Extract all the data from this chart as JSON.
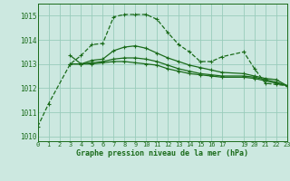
{
  "title": "Graphe pression niveau de la mer (hPa)",
  "bg_color": "#cce8e0",
  "grid_color": "#99ccbb",
  "line_color": "#1a6b1a",
  "xlim": [
    0,
    23
  ],
  "ylim": [
    1009.8,
    1015.5
  ],
  "yticks": [
    1010,
    1011,
    1012,
    1013,
    1014,
    1015
  ],
  "xtick_positions": [
    0,
    1,
    2,
    3,
    4,
    5,
    6,
    7,
    8,
    9,
    10,
    11,
    12,
    13,
    14,
    15,
    16,
    17,
    19,
    20,
    21,
    22,
    23
  ],
  "xtick_labels": [
    "0",
    "1",
    "2",
    "3",
    "4",
    "5",
    "6",
    "7",
    "8",
    "9",
    "10",
    "11",
    "12",
    "13",
    "14",
    "15",
    "16",
    "17",
    "19",
    "20",
    "21",
    "22",
    "23"
  ],
  "series": [
    {
      "x": [
        0,
        1,
        3,
        4,
        5,
        6,
        7,
        8,
        9,
        10,
        11,
        12,
        13,
        14,
        15,
        16,
        17,
        19,
        20,
        21,
        22,
        23
      ],
      "y": [
        1010.4,
        1011.35,
        1013.0,
        1013.35,
        1013.8,
        1013.85,
        1014.95,
        1015.05,
        1015.05,
        1015.05,
        1014.85,
        1014.3,
        1013.8,
        1013.5,
        1013.1,
        1013.1,
        1013.3,
        1013.5,
        1012.8,
        1012.2,
        1012.15,
        1012.1
      ],
      "style": "dashed",
      "lw": 0.9
    },
    {
      "x": [
        3,
        4,
        5,
        6,
        7,
        8,
        9,
        10,
        11,
        12,
        13,
        14,
        15,
        16,
        17,
        19,
        20,
        21,
        22,
        23
      ],
      "y": [
        1013.35,
        1013.0,
        1013.15,
        1013.2,
        1013.55,
        1013.7,
        1013.75,
        1013.65,
        1013.45,
        1013.25,
        1013.1,
        1012.95,
        1012.85,
        1012.75,
        1012.65,
        1012.6,
        1012.5,
        1012.4,
        1012.35,
        1012.1
      ],
      "style": "solid",
      "lw": 0.9
    },
    {
      "x": [
        3,
        4,
        5,
        6,
        7,
        8,
        9,
        10,
        11,
        12,
        13,
        14,
        15,
        16,
        17,
        19,
        20,
        21,
        22,
        23
      ],
      "y": [
        1013.0,
        1013.0,
        1013.05,
        1013.1,
        1013.2,
        1013.25,
        1013.25,
        1013.2,
        1013.1,
        1012.95,
        1012.8,
        1012.7,
        1012.6,
        1012.55,
        1012.5,
        1012.5,
        1012.45,
        1012.35,
        1012.25,
        1012.1
      ],
      "style": "solid",
      "lw": 0.9
    },
    {
      "x": [
        3,
        4,
        5,
        6,
        7,
        8,
        9,
        10,
        11,
        12,
        13,
        14,
        15,
        16,
        17,
        19,
        20,
        21,
        22,
        23
      ],
      "y": [
        1013.0,
        1013.0,
        1013.0,
        1013.05,
        1013.1,
        1013.1,
        1013.05,
        1013.0,
        1012.95,
        1012.8,
        1012.7,
        1012.6,
        1012.55,
        1012.5,
        1012.45,
        1012.45,
        1012.4,
        1012.3,
        1012.2,
        1012.1
      ],
      "style": "solid",
      "lw": 0.9
    }
  ]
}
